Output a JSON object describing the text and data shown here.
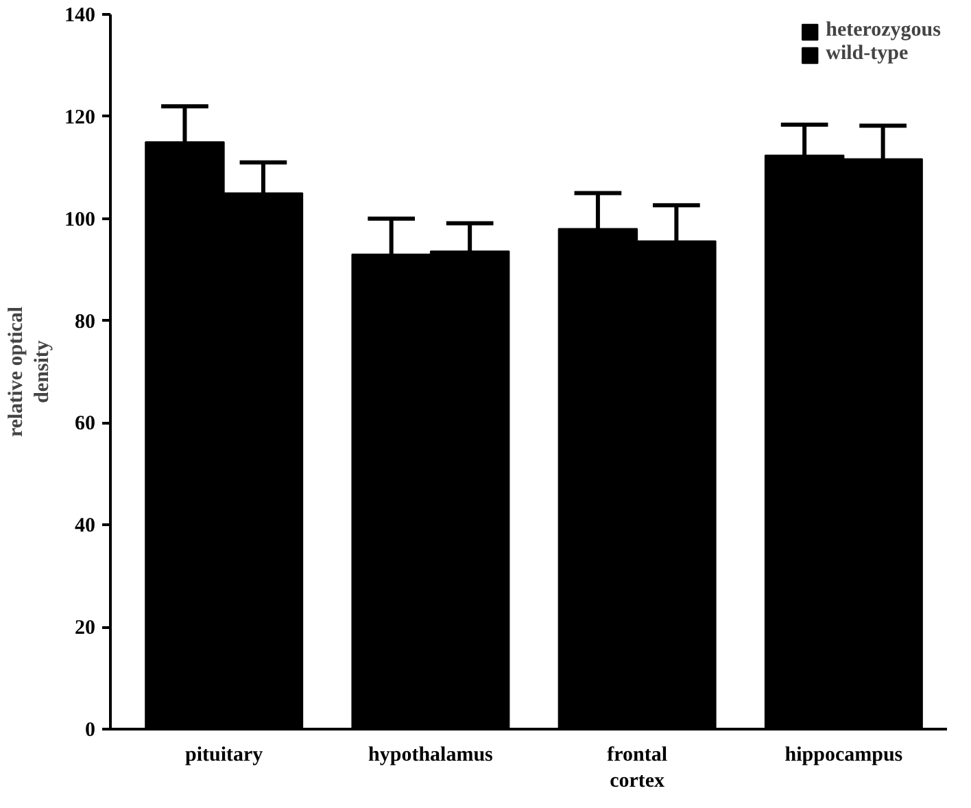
{
  "chart_data": {
    "type": "bar",
    "ylabel": "relative optical\ndensity",
    "categories": [
      "pituitary",
      "hypothalamus",
      "frontal\ncortex",
      "hippocampus"
    ],
    "series": [
      {
        "name": "heterozygous",
        "color": "#000000",
        "values": [
          115,
          93,
          98,
          112.4
        ],
        "errors": [
          7,
          7,
          7,
          6
        ]
      },
      {
        "name": "wild-type",
        "color": "#000000",
        "values": [
          105,
          93.6,
          95.6,
          111.7
        ],
        "errors": [
          6,
          5.5,
          7,
          6.5
        ]
      }
    ],
    "ylim": [
      0,
      140
    ],
    "yticks": [
      0,
      20,
      40,
      60,
      80,
      100,
      120,
      140
    ],
    "grid": false,
    "legend": "top right"
  }
}
